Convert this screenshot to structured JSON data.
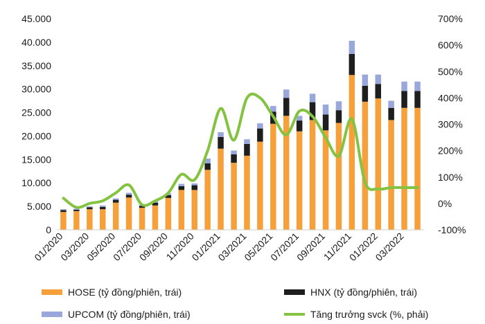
{
  "chart_data": {
    "type": "bar",
    "stacked": true,
    "title": "",
    "categories": [
      "01/2020",
      "02/2020",
      "03/2020",
      "04/2020",
      "05/2020",
      "06/2020",
      "07/2020",
      "08/2020",
      "09/2020",
      "10/2020",
      "11/2020",
      "12/2020",
      "01/2021",
      "02/2021",
      "03/2021",
      "04/2021",
      "05/2021",
      "06/2021",
      "07/2021",
      "08/2021",
      "09/2021",
      "10/2021",
      "11/2021",
      "12/2021",
      "01/2022",
      "02/2022",
      "03/2022",
      "04/2022"
    ],
    "x_tick_labels": [
      "01/2020",
      "03/2020",
      "05/2020",
      "07/2020",
      "09/2020",
      "11/2020",
      "01/2021",
      "03/2021",
      "05/2021",
      "07/2021",
      "09/2021",
      "11/2021",
      "01/2022",
      "03/2022"
    ],
    "series": [
      {
        "name": "HOSE (tỷ đồng/phiên, trái)",
        "axis": "left",
        "kind": "bar",
        "color": "#f5a03a",
        "values": [
          3800,
          4000,
          4400,
          4400,
          5800,
          6900,
          4700,
          5200,
          6800,
          8500,
          8500,
          12800,
          17300,
          14300,
          15800,
          18800,
          22600,
          24300,
          21000,
          23400,
          21200,
          22800,
          33000,
          27300,
          28000,
          23400,
          26000,
          26000
        ]
      },
      {
        "name": "HNX (tỷ đồng/phiên, trái)",
        "axis": "left",
        "kind": "bar",
        "color": "#1e1e1e",
        "values": [
          400,
          300,
          400,
          500,
          600,
          600,
          400,
          600,
          600,
          800,
          1000,
          1400,
          2500,
          1800,
          2500,
          2800,
          2600,
          3800,
          2300,
          3800,
          3400,
          2700,
          4500,
          3400,
          3100,
          2600,
          3600,
          3600
        ]
      },
      {
        "name": "UPCOM (tỷ đồng/phiên, trái)",
        "axis": "left",
        "kind": "bar",
        "color": "#9aa7db",
        "values": [
          200,
          200,
          200,
          300,
          300,
          400,
          200,
          300,
          400,
          500,
          400,
          1000,
          1000,
          800,
          1000,
          1100,
          1200,
          1800,
          1000,
          1800,
          2100,
          1900,
          2800,
          2400,
          2000,
          1500,
          2000,
          2000
        ]
      },
      {
        "name": "Tăng trưởng svck (%, phải)",
        "axis": "right",
        "kind": "line",
        "color": "#84c341",
        "values": [
          20,
          -15,
          0,
          10,
          40,
          70,
          -5,
          10,
          40,
          110,
          90,
          200,
          360,
          240,
          400,
          400,
          330,
          260,
          350,
          330,
          250,
          180,
          320,
          80,
          55,
          60,
          60,
          60
        ]
      }
    ],
    "y_left": {
      "min": 0,
      "max": 45000,
      "step": 5000,
      "tick_labels": [
        "0",
        "5.000",
        "10.000",
        "15.000",
        "20.000",
        "25.000",
        "30.000",
        "35.000",
        "40.000",
        "45.000"
      ]
    },
    "y_right": {
      "min": -100,
      "max": 700,
      "step": 100,
      "tick_labels": [
        "-100%",
        "0%",
        "100%",
        "200%",
        "300%",
        "400%",
        "500%",
        "600%",
        "700%"
      ]
    },
    "legend": {
      "position": "bottom",
      "entries": [
        {
          "label": "HOSE (tỷ đồng/phiên, trái)",
          "color": "#f5a03a",
          "kind": "swatch"
        },
        {
          "label": "HNX (tỷ đồng/phiên, trái)",
          "color": "#1e1e1e",
          "kind": "swatch"
        },
        {
          "label": "UPCOM (tỷ đồng/phiên, trái)",
          "color": "#9aa7db",
          "kind": "swatch"
        },
        {
          "label": "Tăng trưởng svck (%, phải)",
          "color": "#84c341",
          "kind": "line"
        }
      ]
    },
    "grid": false
  }
}
